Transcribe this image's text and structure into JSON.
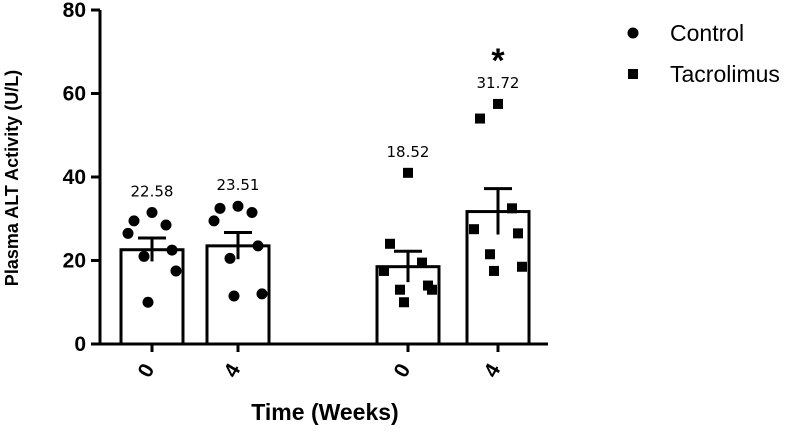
{
  "chart_data": {
    "type": "bar",
    "ylabel": "Plasma ALT Activity (U/L)",
    "xlabel": "Time (Weeks)",
    "ylim": [
      0,
      80
    ],
    "yticks": [
      "0",
      "20",
      "40",
      "60",
      "80"
    ],
    "grid": false,
    "legend_position": "top-right",
    "legend": [
      {
        "name": "Control",
        "marker": "circle"
      },
      {
        "name": "Tacrolimus",
        "marker": "square"
      }
    ],
    "bars": [
      {
        "tick": "0",
        "group": "Control",
        "marker": "circle",
        "mean": 22.58,
        "label": "22.58",
        "sem": 2.8,
        "significance": "",
        "points": [
          31.5,
          29.5,
          28.5,
          26.5,
          22.5,
          21,
          17.5,
          10
        ]
      },
      {
        "tick": "4",
        "group": "Control",
        "marker": "circle",
        "mean": 23.51,
        "label": "23.51",
        "sem": 3.2,
        "significance": "",
        "points": [
          33,
          32.5,
          31.5,
          29.5,
          23.5,
          20.5,
          12,
          11.5
        ]
      },
      {
        "tick": "0",
        "group": "Tacrolimus",
        "marker": "square",
        "mean": 18.52,
        "label": "18.52",
        "sem": 3.7,
        "significance": "",
        "points": [
          41,
          24,
          19.5,
          17.5,
          14,
          13,
          13,
          10
        ]
      },
      {
        "tick": "4",
        "group": "Tacrolimus",
        "marker": "square",
        "mean": 31.72,
        "label": "31.72",
        "sem": 5.5,
        "significance": "*",
        "points": [
          57.5,
          54,
          32.5,
          27.5,
          26.5,
          21.5,
          18.5,
          17.5
        ]
      }
    ],
    "colors": {
      "bar_fill": "#ffffff",
      "stroke": "#000000",
      "marker": "#000000"
    }
  }
}
